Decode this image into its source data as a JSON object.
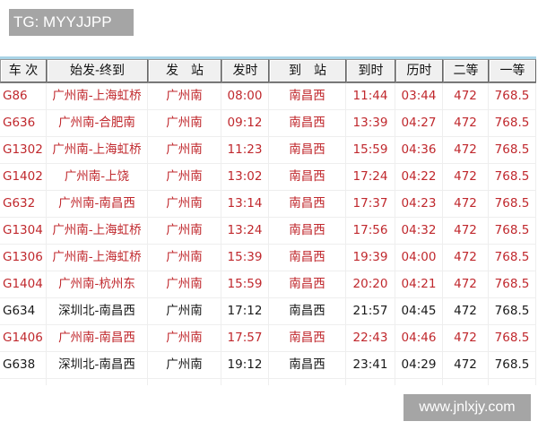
{
  "watermark_top": "TG: MYYJJPP",
  "watermark_bottom": "www.jnlxjy.com",
  "colors": {
    "highlight": "#c0282d",
    "normal": "#1a1a1a"
  },
  "headers": [
    "车 次",
    "始发-终到",
    "发　站",
    "发时",
    "到　站",
    "到时",
    "历时",
    "二等",
    "一等"
  ],
  "rows": [
    {
      "highlight": true,
      "cells": [
        "G86",
        "广州南-上海虹桥",
        "广州南",
        "08:00",
        "南昌西",
        "11:44",
        "03:44",
        "472",
        "768.5"
      ]
    },
    {
      "highlight": true,
      "cells": [
        "G636",
        "广州南-合肥南",
        "广州南",
        "09:12",
        "南昌西",
        "13:39",
        "04:27",
        "472",
        "768.5"
      ]
    },
    {
      "highlight": true,
      "cells": [
        "G1302",
        "广州南-上海虹桥",
        "广州南",
        "11:23",
        "南昌西",
        "15:59",
        "04:36",
        "472",
        "768.5"
      ]
    },
    {
      "highlight": true,
      "cells": [
        "G1402",
        "广州南-上饶",
        "广州南",
        "13:02",
        "南昌西",
        "17:24",
        "04:22",
        "472",
        "768.5"
      ]
    },
    {
      "highlight": true,
      "cells": [
        "G632",
        "广州南-南昌西",
        "广州南",
        "13:14",
        "南昌西",
        "17:37",
        "04:23",
        "472",
        "768.5"
      ]
    },
    {
      "highlight": true,
      "cells": [
        "G1304",
        "广州南-上海虹桥",
        "广州南",
        "13:24",
        "南昌西",
        "17:56",
        "04:32",
        "472",
        "768.5"
      ]
    },
    {
      "highlight": true,
      "cells": [
        "G1306",
        "广州南-上海虹桥",
        "广州南",
        "15:39",
        "南昌西",
        "19:39",
        "04:00",
        "472",
        "768.5"
      ]
    },
    {
      "highlight": true,
      "cells": [
        "G1404",
        "广州南-杭州东",
        "广州南",
        "15:59",
        "南昌西",
        "20:20",
        "04:21",
        "472",
        "768.5"
      ]
    },
    {
      "highlight": false,
      "cells": [
        "G634",
        "深圳北-南昌西",
        "广州南",
        "17:12",
        "南昌西",
        "21:57",
        "04:45",
        "472",
        "768.5"
      ]
    },
    {
      "highlight": true,
      "cells": [
        "G1406",
        "广州南-南昌西",
        "广州南",
        "17:57",
        "南昌西",
        "22:43",
        "04:46",
        "472",
        "768.5"
      ]
    },
    {
      "highlight": false,
      "cells": [
        "G638",
        "深圳北-南昌西",
        "广州南",
        "19:12",
        "南昌西",
        "23:41",
        "04:29",
        "472",
        "768.5"
      ]
    }
  ]
}
